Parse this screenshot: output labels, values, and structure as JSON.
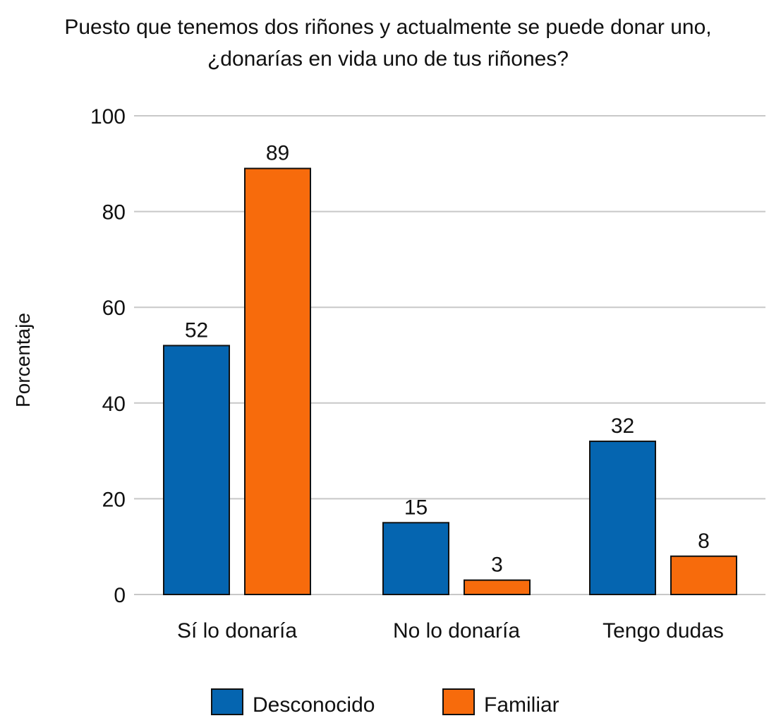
{
  "chart_data": {
    "type": "bar",
    "title_lines": [
      "Puesto que tenemos dos riñones y actualmente se puede donar uno,",
      "¿donarías en vida uno de tus riñones?"
    ],
    "xlabel": "",
    "ylabel": "Porcentaje",
    "ylim": [
      0,
      100
    ],
    "yticks": [
      0,
      20,
      40,
      60,
      80,
      100
    ],
    "grid": true,
    "legend_position": "bottom",
    "categories": [
      "Sí lo donaría",
      "No lo donaría",
      "Tengo dudas"
    ],
    "series": [
      {
        "name": "Desconocido",
        "color": "#0565b0",
        "values": [
          52,
          15,
          32
        ]
      },
      {
        "name": "Familiar",
        "color": "#f76b0c",
        "values": [
          89,
          3,
          8
        ]
      }
    ]
  }
}
